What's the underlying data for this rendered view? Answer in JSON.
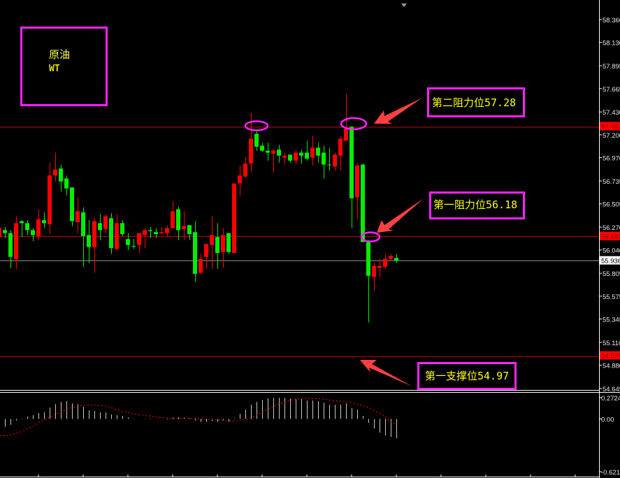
{
  "symbol_box": {
    "name": "原油",
    "code": "WT"
  },
  "annotations": [
    {
      "label": "第二阻力位57.28",
      "level": 57.28
    },
    {
      "label": "第一阻力位56.18",
      "level": 56.18
    },
    {
      "label": "第一支撑位54.97",
      "level": 54.97
    }
  ],
  "colors": {
    "bull": "#ff0000",
    "bear": "#00ee00",
    "level_line": "#cc0000",
    "current_line": "#9a9a9a",
    "annotation": "#ff22ff",
    "text": "#ffff00",
    "arrow": "#ff4040",
    "signal": "#ff0000",
    "histogram": "#c8c8c8"
  },
  "chart_data": [
    {
      "type": "candlestick",
      "title": "",
      "ylim": [
        54.645,
        58.36
      ],
      "y_ticks": [
        "58.360",
        "58.130",
        "57.895",
        "57.665",
        "57.430",
        "57.200",
        "56.970",
        "56.735",
        "56.505",
        "56.270",
        "56.040",
        "55.805",
        "55.575",
        "55.345",
        "55.110",
        "54.880",
        "54.645"
      ],
      "price_tags": [
        {
          "text": "57.287",
          "value": 57.287,
          "style": "level"
        },
        {
          "text": "56.181",
          "value": 56.181,
          "style": "level"
        },
        {
          "text": "55.936",
          "value": 55.936,
          "style": "current"
        },
        {
          "text": "54.979",
          "value": 54.979,
          "style": "level"
        }
      ],
      "horizontal_lines": [
        57.28,
        56.18,
        54.97
      ],
      "current_price": 55.936,
      "ohlc": [
        [
          56.17,
          56.26,
          56.17,
          56.26
        ],
        [
          56.24,
          56.27,
          56.16,
          56.21
        ],
        [
          56.21,
          56.24,
          55.86,
          55.97
        ],
        [
          55.95,
          56.38,
          55.85,
          56.31
        ],
        [
          56.33,
          56.34,
          56.17,
          56.31
        ],
        [
          56.31,
          56.34,
          56.19,
          56.24
        ],
        [
          56.24,
          56.26,
          56.13,
          56.19
        ],
        [
          56.18,
          56.45,
          56.14,
          56.35
        ],
        [
          56.34,
          56.42,
          56.26,
          56.31
        ],
        [
          56.3,
          56.92,
          56.2,
          56.79
        ],
        [
          56.79,
          57.02,
          56.73,
          56.85
        ],
        [
          56.86,
          56.9,
          56.63,
          56.73
        ],
        [
          56.76,
          56.79,
          56.59,
          56.66
        ],
        [
          56.67,
          56.67,
          56.28,
          56.33
        ],
        [
          56.32,
          56.57,
          56.21,
          56.43
        ],
        [
          56.42,
          56.47,
          55.87,
          56.18
        ],
        [
          56.19,
          56.34,
          55.91,
          56.07
        ],
        [
          56.07,
          56.36,
          55.81,
          56.33
        ],
        [
          56.31,
          56.4,
          56.14,
          56.24
        ],
        [
          56.25,
          56.4,
          56.21,
          56.38
        ],
        [
          56.36,
          56.41,
          56.0,
          56.06
        ],
        [
          56.05,
          56.4,
          56.04,
          56.31
        ],
        [
          56.31,
          56.34,
          56.18,
          56.2
        ],
        [
          56.15,
          56.21,
          56.04,
          56.09
        ],
        [
          56.08,
          56.15,
          56.05,
          56.08
        ],
        [
          56.09,
          56.21,
          56.01,
          56.21
        ],
        [
          56.19,
          56.26,
          56.06,
          56.24
        ],
        [
          56.24,
          56.27,
          56.16,
          56.23
        ],
        [
          56.22,
          56.26,
          56.16,
          56.2
        ],
        [
          56.21,
          56.27,
          56.19,
          56.22
        ],
        [
          56.21,
          56.29,
          56.18,
          56.26
        ],
        [
          56.26,
          56.53,
          56.25,
          56.43
        ],
        [
          56.45,
          56.48,
          56.14,
          56.24
        ],
        [
          56.25,
          56.43,
          56.14,
          56.28
        ],
        [
          56.29,
          56.29,
          56.14,
          56.2
        ],
        [
          56.22,
          56.33,
          55.72,
          55.8
        ],
        [
          55.81,
          56.0,
          55.8,
          55.95
        ],
        [
          55.97,
          56.1,
          55.85,
          56.1
        ],
        [
          56.09,
          56.38,
          55.85,
          56.19
        ],
        [
          56.17,
          56.31,
          55.85,
          56.01
        ],
        [
          56.02,
          56.26,
          55.86,
          56.19
        ],
        [
          56.21,
          56.21,
          56.0,
          56.02
        ],
        [
          56.01,
          56.71,
          56.01,
          56.71
        ],
        [
          56.71,
          56.89,
          56.59,
          56.79
        ],
        [
          56.78,
          56.97,
          56.76,
          56.91
        ],
        [
          56.91,
          57.42,
          56.82,
          57.16
        ],
        [
          57.21,
          57.24,
          57.04,
          57.08
        ],
        [
          57.09,
          57.12,
          57.03,
          57.04
        ],
        [
          57.04,
          57.12,
          56.94,
          57.02
        ],
        [
          57.01,
          57.05,
          56.82,
          57.04
        ],
        [
          57.05,
          57.1,
          56.92,
          56.99
        ],
        [
          56.97,
          57.02,
          56.9,
          56.99
        ],
        [
          57.0,
          57.0,
          56.92,
          56.94
        ],
        [
          56.94,
          57.05,
          56.9,
          57.02
        ],
        [
          57.02,
          57.05,
          56.91,
          56.99
        ],
        [
          57.02,
          57.14,
          56.94,
          56.96
        ],
        [
          56.97,
          57.19,
          56.89,
          57.07
        ],
        [
          57.07,
          57.12,
          56.92,
          56.99
        ],
        [
          57.02,
          57.09,
          56.76,
          56.9
        ],
        [
          56.9,
          57.07,
          56.84,
          56.9
        ],
        [
          56.88,
          57.02,
          56.84,
          57.0
        ],
        [
          56.99,
          57.19,
          56.84,
          57.16
        ],
        [
          57.14,
          57.61,
          57.14,
          57.26
        ],
        [
          57.28,
          57.29,
          56.26,
          56.56
        ],
        [
          56.57,
          56.91,
          56.35,
          56.89
        ],
        [
          56.9,
          56.91,
          56.12,
          56.12
        ],
        [
          56.12,
          56.14,
          55.31,
          55.78
        ],
        [
          55.77,
          55.91,
          55.63,
          55.88
        ],
        [
          55.86,
          55.95,
          55.77,
          55.88
        ],
        [
          55.87,
          56.0,
          55.85,
          55.95
        ],
        [
          55.95,
          56.0,
          55.93,
          55.98
        ],
        [
          55.96,
          56.0,
          55.91,
          55.93
        ]
      ]
    },
    {
      "type": "bar+line",
      "title": "",
      "ylim": [
        -0.6217,
        0.2724
      ],
      "y_ticks": [
        "0.2724",
        "0.00",
        "-0.6217"
      ],
      "histogram": [
        -0.1,
        -0.098,
        -0.072,
        -0.02,
        0.005,
        0.029,
        0.046,
        0.072,
        0.081,
        0.141,
        0.184,
        0.21,
        0.219,
        0.193,
        0.184,
        0.15,
        0.107,
        0.098,
        0.081,
        0.081,
        0.055,
        0.046,
        0.037,
        0.02,
        0.003,
        0,
        0.003,
        0.003,
        0,
        0,
        -0.006,
        0.017,
        0.02,
        0.02,
        0.009,
        -0.02,
        -0.037,
        -0.037,
        -0.026,
        -0.037,
        -0.02,
        -0.037,
        0.006,
        0.063,
        0.115,
        0.176,
        0.21,
        0.236,
        0.254,
        0.262,
        0.262,
        0.262,
        0.254,
        0.245,
        0.245,
        0.228,
        0.228,
        0.219,
        0.202,
        0.176,
        0.176,
        0.176,
        0.193,
        0.133,
        0.115,
        0.037,
        -0.049,
        -0.118,
        -0.17,
        -0.205,
        -0.222,
        -0.24
      ],
      "signal": [
        -0.208,
        -0.208,
        -0.199,
        -0.179,
        -0.156,
        -0.121,
        -0.092,
        -0.043,
        -0.012,
        0.017,
        0.058,
        0.087,
        0.118,
        0.141,
        0.159,
        0.167,
        0.173,
        0.173,
        0.167,
        0.159,
        0.141,
        0.115,
        0.095,
        0.081,
        0.066,
        0.052,
        0.043,
        0.035,
        0.023,
        0.017,
        0.012,
        0.009,
        0.009,
        0.009,
        0.006,
        0.006,
        0.003,
        0,
        -0.006,
        -0.009,
        -0.014,
        -0.026,
        -0.026,
        -0.02,
        -0.006,
        0.009,
        0.046,
        0.081,
        0.124,
        0.153,
        0.182,
        0.202,
        0.231,
        0.245,
        0.251,
        0.26,
        0.251,
        0.251,
        0.245,
        0.236,
        0.225,
        0.219,
        0.211,
        0.202,
        0.185,
        0.167,
        0.144,
        0.104,
        0.072,
        0.029,
        -0.037,
        -0.069
      ]
    }
  ]
}
